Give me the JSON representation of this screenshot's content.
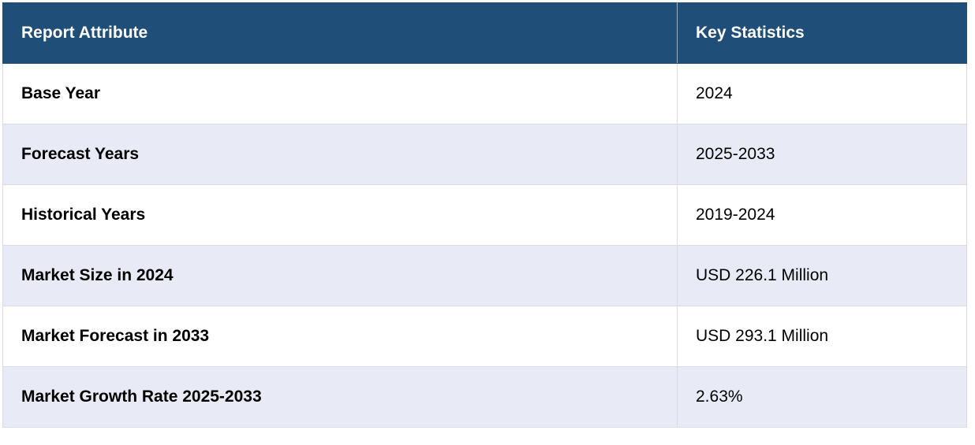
{
  "table": {
    "headers": [
      "Report Attribute",
      "Key Statistics"
    ],
    "rows": [
      {
        "attribute": "Base Year",
        "value": "2024"
      },
      {
        "attribute": "Forecast Years",
        "value": "2025-2033"
      },
      {
        "attribute": "Historical Years",
        "value": "2019-2024"
      },
      {
        "attribute": "Market Size in 2024",
        "value": "USD 226.1 Million"
      },
      {
        "attribute": "Market Forecast in 2033",
        "value": "USD 293.1 Million"
      },
      {
        "attribute": "Market Growth Rate 2025-2033",
        "value": "2.63%"
      }
    ]
  },
  "colors": {
    "header_bg": "#1f4e79",
    "header_text": "#ffffff",
    "row_alt_bg": "#e8eaf6",
    "row_bg": "#ffffff"
  }
}
